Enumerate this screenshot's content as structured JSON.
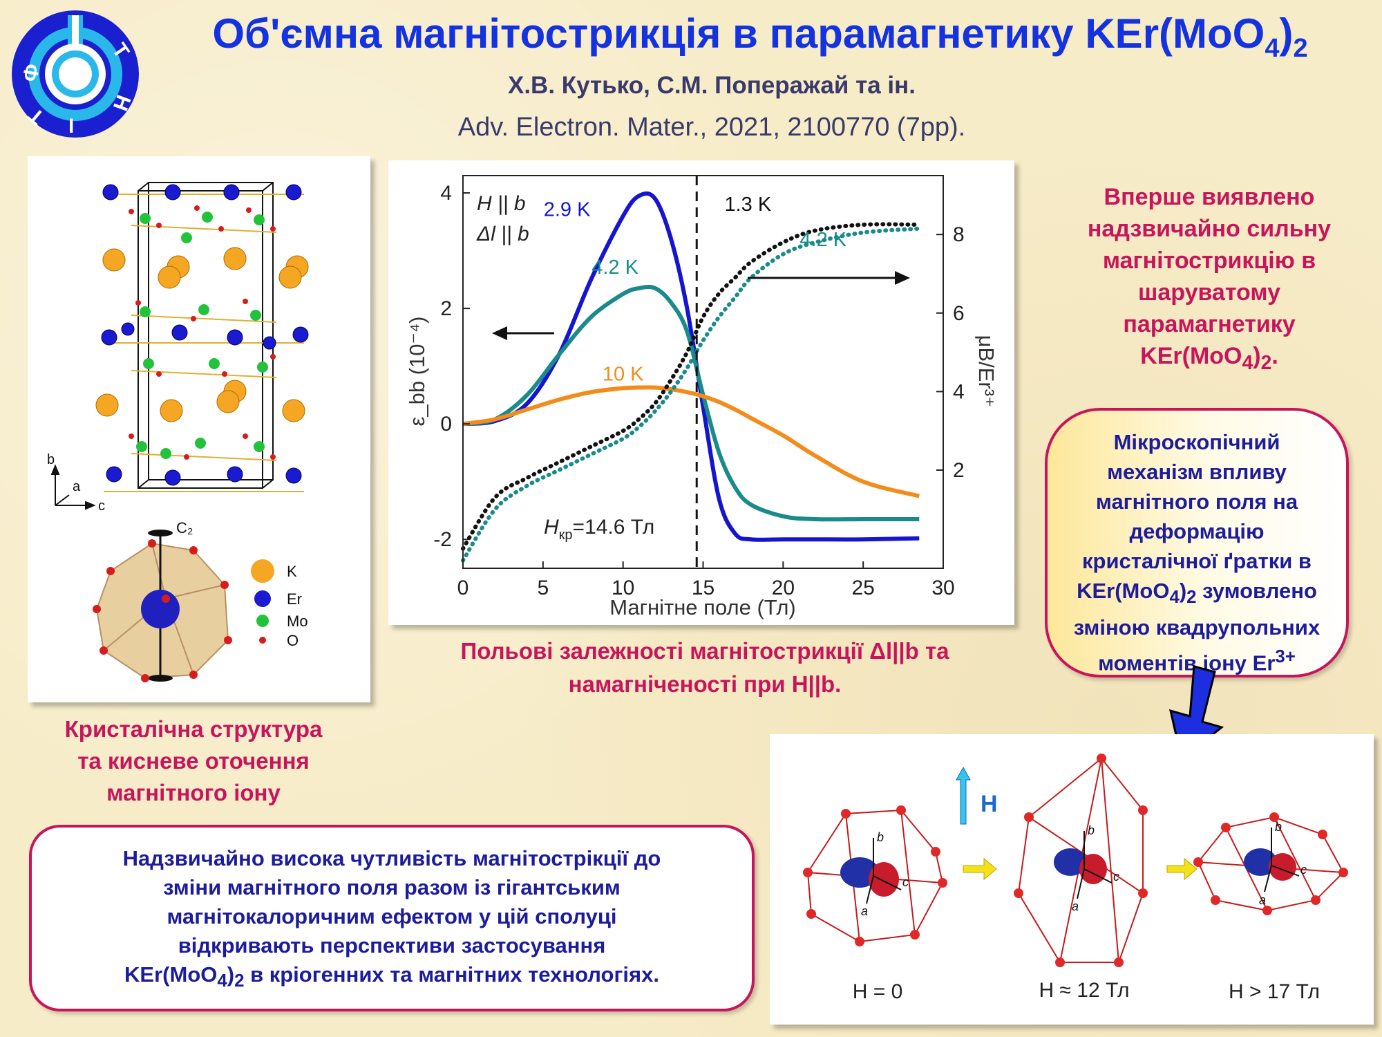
{
  "header": {
    "title_main": "Об'ємна магнітострикція в парамагнетику KEr(MoO",
    "title_sub": "4",
    "title_close": ")",
    "title_sub2": "2",
    "authors": "Х.В. Кутько, С.М. Поперажай та ін.",
    "journal": "Adv. Electron. Mater., 2021, 2100770 (7pp).",
    "logo_letters": [
      "Ф",
      "Т",
      "І",
      "Н",
      "Т"
    ]
  },
  "crystal_panel": {
    "axes": {
      "b": "b",
      "a": "a",
      "c": "c"
    },
    "c2_label": "C₂",
    "legend": [
      {
        "label": "K",
        "color": "#f5a623"
      },
      {
        "label": "Er",
        "color": "#1a1ad0"
      },
      {
        "label": "Mo",
        "color": "#22c33a"
      },
      {
        "label": "O",
        "color": "#d81c1c"
      }
    ],
    "caption": [
      "Кристалічна структура",
      "та кисневе оточення",
      "магнітного іону"
    ]
  },
  "chart_data": {
    "type": "line",
    "xlabel": "Магнітне поле (Тл)",
    "ylabel_left": "ε_bb (10⁻⁴)",
    "ylabel_right": "μB/Er³⁺",
    "xlim": [
      0,
      30
    ],
    "xticks": [
      0,
      5,
      10,
      15,
      20,
      25,
      30
    ],
    "ylim_left": [
      -2.5,
      4.3
    ],
    "yticks_left": [
      -2,
      0,
      2,
      4
    ],
    "ylim_right": [
      -0.5,
      9.5
    ],
    "yticks_right": [
      2,
      4,
      6,
      8
    ],
    "legend_lines": [
      "H || b",
      "Δl || b"
    ],
    "critical_field": {
      "x": 14.6,
      "label_main": "H",
      "label_sub": "кр",
      "label_rest": "=14.6 Тл"
    },
    "x": [
      0,
      2,
      4,
      6,
      8,
      10,
      11,
      12,
      13,
      14,
      15,
      16,
      17,
      18,
      20,
      22,
      25,
      28.5
    ],
    "series": [
      {
        "name": "2.9 K",
        "axis": "left",
        "color": "#1515d0",
        "style": "solid",
        "values": [
          0,
          0.05,
          0.35,
          1.2,
          2.5,
          3.6,
          3.95,
          3.9,
          3.2,
          2.0,
          0.3,
          -1.3,
          -1.9,
          -2.0,
          -2.0,
          -2.0,
          -2.0,
          -1.98
        ]
      },
      {
        "name": "4.2 K",
        "axis": "left",
        "color": "#1a8a8a",
        "style": "solid",
        "values": [
          0,
          0.08,
          0.5,
          1.2,
          1.85,
          2.25,
          2.35,
          2.35,
          2.1,
          1.6,
          0.5,
          -0.5,
          -1.1,
          -1.4,
          -1.6,
          -1.65,
          -1.65,
          -1.65
        ]
      },
      {
        "name": "10 K",
        "axis": "left",
        "color": "#f28c1c",
        "style": "solid",
        "values": [
          0,
          0.08,
          0.25,
          0.42,
          0.55,
          0.62,
          0.63,
          0.63,
          0.6,
          0.55,
          0.48,
          0.38,
          0.25,
          0.1,
          -0.2,
          -0.55,
          -1.0,
          -1.25
        ]
      },
      {
        "name": "1.3 K",
        "axis": "right",
        "color": "#111111",
        "style": "dotted",
        "values": [
          0,
          1.3,
          1.8,
          2.2,
          2.6,
          3.0,
          3.3,
          3.7,
          4.3,
          5.0,
          5.9,
          6.5,
          6.9,
          7.3,
          7.8,
          8.1,
          8.25,
          8.25
        ]
      },
      {
        "name": "4.2 K",
        "axis": "right",
        "color": "#1a8a8a",
        "style": "dotted",
        "values": [
          -0.3,
          1.0,
          1.6,
          2.0,
          2.4,
          2.8,
          3.1,
          3.5,
          4.0,
          4.6,
          5.3,
          5.9,
          6.4,
          6.9,
          7.5,
          7.8,
          8.05,
          8.15
        ]
      }
    ]
  },
  "chart_caption": [
    "Польові залежності магнітострикції Δl||b та",
    "намагніченості при H||b."
  ],
  "right_text": {
    "line1": "Вперше виявлено",
    "line2": "надзвичайно сильну",
    "line3": "магнітострикцію в",
    "line4": "шаруватому",
    "line5": "парамагнетику",
    "formula_main": "KEr(MoO",
    "formula_sub": "4",
    "formula_close": ")",
    "formula_sub2": "2",
    "formula_end": "."
  },
  "mechanism": {
    "l1": "Мікроскопічний",
    "l2": "механізм впливу",
    "l3": "магнітного поля на",
    "l4": "деформацію",
    "l5": "кристалічної ґратки в",
    "l6_main": "KEr(MoO",
    "l6_sub": "4",
    "l6_close": ")",
    "l6_sub2": "2",
    "l6_end": " зумовлено",
    "l7": "зміною квадрупольних",
    "l8_main": "моментів  іону Er",
    "l8_sup": "3+"
  },
  "orbital_panel": {
    "field_label": "H",
    "axes": {
      "a": "a",
      "b": "b",
      "c": "c"
    },
    "states": [
      "H = 0",
      "H ≈ 12 Тл",
      "H > 17 Тл"
    ]
  },
  "bottom_box": {
    "l1": "Надзвичайно висока чутливість магнітострікції до",
    "l2": "зміни магнітного поля разом із гігантським",
    "l3": "магнітокалоричним ефектом у цій сполуці",
    "l4": "відкривають перспективи застосування",
    "l5_main": "KEr(MoO",
    "l5_sub": "4",
    "l5_close": ")",
    "l5_sub2": "2",
    "l5_end": " в кріогенних та магнітних технологіях."
  }
}
